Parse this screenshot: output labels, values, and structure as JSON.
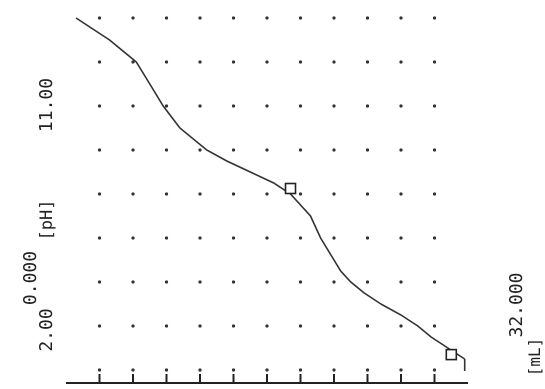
{
  "chart_data": {
    "type": "line",
    "title": "",
    "ylabel": "[pH]",
    "xlabel": "[mL]",
    "y_tick_labels": {
      "low": "2.00",
      "high": "11.00"
    },
    "x_tick_labels": {
      "low": "0.000",
      "high": "32.000"
    },
    "xlim": [
      0,
      32
    ],
    "ylim": [
      1,
      13
    ],
    "x_ticks": [
      0,
      4,
      8,
      12,
      16,
      20,
      24,
      28,
      32
    ],
    "y_gridlines": [
      2,
      3,
      4,
      5,
      6,
      7,
      8,
      9,
      10,
      11,
      12
    ],
    "grid": "dotted",
    "series": [
      {
        "x": [
          0,
          1,
          2,
          4,
          6,
          8,
          10,
          12,
          13,
          14,
          15,
          16,
          18,
          20,
          22,
          23,
          24,
          25,
          26,
          27,
          28,
          29,
          30,
          31
        ],
        "y": [
          12.7,
          12.2,
          11.7,
          10.9,
          10.5,
          10.1,
          9.6,
          8.8,
          8.2,
          7.5,
          6.8,
          6.3,
          5.7,
          5.4,
          5.0,
          4.8,
          4.5,
          4.1,
          3.6,
          3.0,
          2.5,
          2.1,
          1.6,
          1.1
        ]
      }
    ],
    "markers": [
      {
        "x": 15.5,
        "y": 6.3
      },
      {
        "x": 30.6,
        "y": 1.5
      }
    ],
    "colors": {
      "ink": "#222222",
      "background": "#ffffff"
    }
  }
}
